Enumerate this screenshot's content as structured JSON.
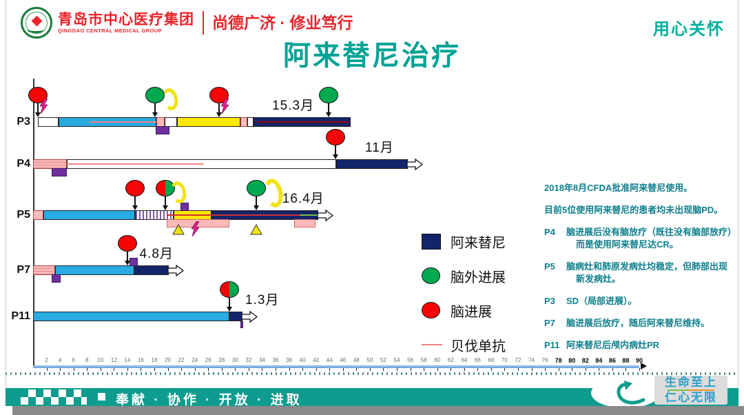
{
  "header": {
    "org_name": "青岛市中心医疗集团",
    "org_name_en": "QINGDAO CENTRAL MEDICAL GROUP",
    "motto": "尚德广济 · 修业笃行",
    "care_slogan": "用心关怀"
  },
  "title": "阿来替尼治疗",
  "chart_data": {
    "type": "bar",
    "subtype": "swimmer-timeline",
    "title": "阿来替尼治疗",
    "x_unit": "月",
    "xlim": [
      0,
      90
    ],
    "x_ticks": [
      2,
      4,
      6,
      8,
      10,
      12,
      14,
      16,
      18,
      20,
      22,
      24,
      26,
      28,
      30,
      32,
      34,
      36,
      38,
      40,
      42,
      44,
      46,
      48,
      50,
      52,
      54,
      56,
      58,
      60,
      62,
      64,
      66,
      68,
      70,
      72,
      74,
      76,
      78,
      80,
      82,
      84,
      86,
      88,
      90
    ],
    "bold_tick_threshold": 78,
    "patients": [
      {
        "id": "P3",
        "duration_label": "15.3月",
        "duration_label_month": 35.5,
        "end_arrow": false,
        "segments": [
          {
            "kind": "blank",
            "start": 0.7,
            "end": 3.8
          },
          {
            "kind": "chemo-cyan",
            "start": 3.8,
            "end": 18.3
          },
          {
            "kind": "pink",
            "start": 18.3,
            "end": 19.5
          },
          {
            "kind": "blank",
            "start": 19.5,
            "end": 21.4
          },
          {
            "kind": "yellow",
            "start": 21.4,
            "end": 30.8
          },
          {
            "kind": "pink",
            "start": 30.8,
            "end": 31.8
          },
          {
            "kind": "blank",
            "start": 31.8,
            "end": 32.7
          },
          {
            "kind": "alectinib-navy",
            "start": 32.7,
            "end": 47.2
          }
        ],
        "lines": [
          {
            "color": "bev",
            "start": 8.4,
            "end": 18.3
          },
          {
            "color": "darkred",
            "start": 33.3,
            "end": 46.8
          }
        ],
        "markers": [
          {
            "type": "red-circle",
            "month": 0.7,
            "lightning": true
          },
          {
            "type": "green-circle",
            "month": 18.1
          },
          {
            "type": "crescent",
            "month": 20.0
          },
          {
            "type": "red-circle",
            "month": 27.6,
            "lightning": true
          },
          {
            "type": "green-circle",
            "month": 43.9
          }
        ],
        "decorations": [
          {
            "type": "purple-below",
            "start": 18.2,
            "end": 20.3
          }
        ]
      },
      {
        "id": "P4",
        "duration_label": "11月",
        "duration_label_month": 49.3,
        "end_arrow": true,
        "segments": [
          {
            "kind": "pink-lined",
            "start": 0,
            "end": 5.0
          },
          {
            "kind": "blank",
            "start": 5.0,
            "end": 45.0
          },
          {
            "kind": "alectinib-navy",
            "start": 45.0,
            "end": 55.6
          }
        ],
        "lines": [
          {
            "color": "bev",
            "start": 5.0,
            "end": 25.3
          }
        ],
        "markers": [
          {
            "type": "red-circle",
            "month": 44.9
          }
        ],
        "decorations": [
          {
            "type": "purple-below",
            "start": 2.8,
            "end": 5.0
          }
        ]
      },
      {
        "id": "P5",
        "duration_label": "16.4月",
        "duration_label_month": 37.0,
        "end_arrow": true,
        "segments": [
          {
            "kind": "pink",
            "start": 0,
            "end": 1.5
          },
          {
            "kind": "chemo-cyan",
            "start": 1.5,
            "end": 15.1
          },
          {
            "kind": "striped",
            "start": 15.1,
            "end": 20.9
          },
          {
            "kind": "yellow",
            "start": 20.9,
            "end": 26.5
          },
          {
            "kind": "alectinib-navy",
            "start": 26.5,
            "end": 42.3
          }
        ],
        "lines": [
          {
            "color": "red",
            "start": 19.8,
            "end": 41.5
          },
          {
            "color": "green",
            "start": 39.6,
            "end": 42.3
          }
        ],
        "markers": [
          {
            "type": "red-circle",
            "month": 15.1
          },
          {
            "type": "half-red-green",
            "month": 19.6
          },
          {
            "type": "crescent",
            "month": 21.3
          },
          {
            "type": "green-circle",
            "month": 33.1
          },
          {
            "type": "crescent-large",
            "month": 35.2
          }
        ],
        "decorations": [
          {
            "type": "purple-above",
            "start": 21.9,
            "end": 23.1
          },
          {
            "type": "pink-below",
            "start": 19.8,
            "end": 29.1
          },
          {
            "type": "pink-below",
            "start": 38.8,
            "end": 41.9
          },
          {
            "type": "triangle-below",
            "month": 21.6
          },
          {
            "type": "triangle-below",
            "month": 33.1
          },
          {
            "type": "lightning-below",
            "month": 24.0
          }
        ]
      },
      {
        "id": "P7",
        "duration_label": "4.8月",
        "duration_label_month": 15.8,
        "end_arrow": true,
        "segments": [
          {
            "kind": "pink-lined",
            "start": 0,
            "end": 3.3
          },
          {
            "kind": "chemo-cyan",
            "start": 3.3,
            "end": 15.0
          },
          {
            "kind": "alectinib-navy",
            "start": 15.0,
            "end": 20.1
          }
        ],
        "lines": [],
        "markers": [
          {
            "type": "red-circle",
            "month": 14.0
          }
        ],
        "decorations": [
          {
            "type": "purple-below",
            "start": 2.8,
            "end": 4.1
          },
          {
            "type": "purple-above",
            "start": 14.3,
            "end": 15.5
          }
        ]
      },
      {
        "id": "P11",
        "duration_label": "1.3月",
        "duration_label_month": 31.5,
        "end_arrow": true,
        "segments": [
          {
            "kind": "chemo-cyan",
            "start": 0,
            "end": 29.1
          },
          {
            "kind": "alectinib-navy",
            "start": 29.1,
            "end": 31.1
          }
        ],
        "lines": [],
        "markers": [
          {
            "type": "half-red-green",
            "month": 29.1
          }
        ],
        "decorations": [
          {
            "type": "purple-tick-below",
            "month": 30.9
          }
        ]
      }
    ]
  },
  "legend": {
    "items": [
      {
        "swatch": "navy-square",
        "label": "阿来替尼"
      },
      {
        "swatch": "green-circle",
        "label": "脑外进展"
      },
      {
        "swatch": "red-circle",
        "label": "脑进展"
      },
      {
        "swatch": "pink-line",
        "label": "贝伐单抗"
      }
    ]
  },
  "notes": [
    {
      "tag": "",
      "lines": [
        "2018年8月CFDA批准阿来替尼使用。"
      ]
    },
    {
      "tag": "",
      "lines": [
        "目前5位使用阿来替尼的患者均未出现脑PD。"
      ]
    },
    {
      "tag": "P4",
      "lines": [
        "脑进展后没有脑放疗（既往没有脑部放疗）",
        "而是使用阿来替尼达CR。"
      ]
    },
    {
      "tag": "P5",
      "lines": [
        "脑病灶和肺原发病灶均稳定，但肺部出现",
        "新发病灶。"
      ]
    },
    {
      "tag": "P3",
      "lines": [
        "SD（局部进展）。"
      ]
    },
    {
      "tag": "P7",
      "lines": [
        "脑进展后放疗，随后阿来替尼维持。"
      ]
    },
    {
      "tag": "P11",
      "lines": [
        "阿来替尼后颅内病灶PR"
      ]
    }
  ],
  "footer": {
    "slogan": "奉献 · 协作 · 开放 · 进取",
    "badge_line1": "生命至上",
    "badge_line2": "仁心无限"
  },
  "colors": {
    "brand_red": "#e8232a",
    "title_teal": "#00a295",
    "notes_teal": "#0e7f8c",
    "footer_teal": "#0e9c8e",
    "alectinib_navy": "#14246b",
    "chemo_cyan": "#29abe2",
    "yellow": "#ffe800",
    "pink": "#f9b9b9",
    "purple": "#7030a0",
    "bevacizumab_line": "#f08080",
    "progress_red": "#f50505",
    "extracranial_green": "#00a94f",
    "badge_blue": "#2ba0c8"
  }
}
